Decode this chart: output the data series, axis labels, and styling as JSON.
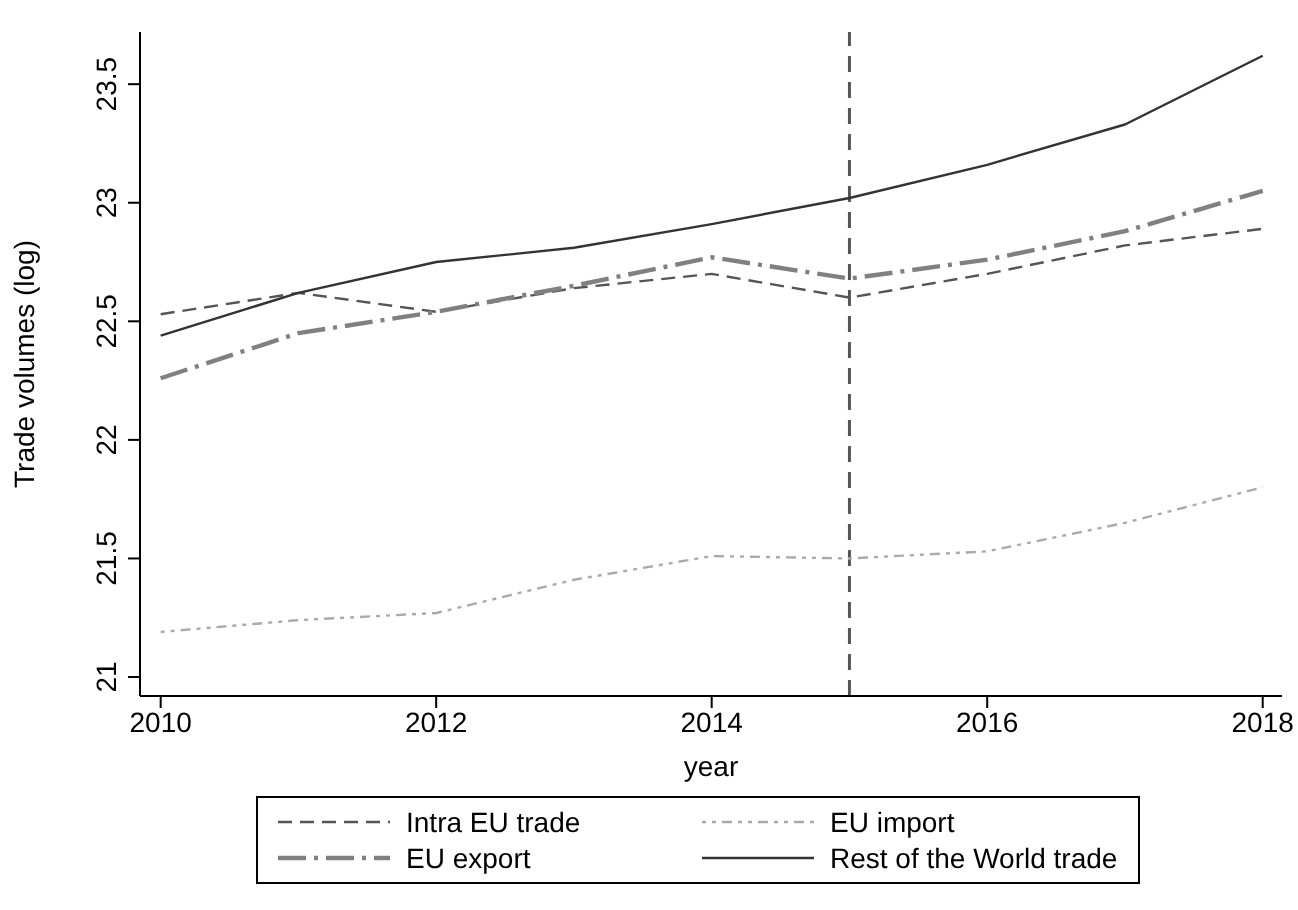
{
  "chart_data": {
    "type": "line",
    "xlabel": "year",
    "ylabel": "Trade volumes (log)",
    "x": [
      2010,
      2011,
      2012,
      2013,
      2014,
      2015,
      2016,
      2017,
      2018
    ],
    "xlim": [
      2009.85,
      2018.14
    ],
    "xticks": [
      2010,
      2012,
      2014,
      2016,
      2018
    ],
    "ylim": [
      20.92,
      23.72
    ],
    "yticks": [
      21,
      21.5,
      22,
      22.5,
      23,
      23.5
    ],
    "grid": false,
    "legend": "bottom",
    "marker": "none",
    "ref_lines": [
      {
        "axis": "x",
        "value": 2015,
        "color": "#555555",
        "line_style": "dashed"
      }
    ],
    "series": [
      {
        "name": "Intra EU trade",
        "color": "#555555",
        "line_style": "dashed",
        "values": [
          22.53,
          22.62,
          22.54,
          22.64,
          22.7,
          22.6,
          22.7,
          22.82,
          22.89
        ]
      },
      {
        "name": "EU import",
        "color": "#aaaaaa",
        "line_style": "dotted",
        "values": [
          21.19,
          21.24,
          21.27,
          21.41,
          21.51,
          21.5,
          21.53,
          21.65,
          21.8
        ]
      },
      {
        "name": "EU export",
        "color": "#808080",
        "line_style": "dashed",
        "values": [
          22.26,
          22.45,
          22.54,
          22.65,
          22.77,
          22.68,
          22.76,
          22.88,
          23.05
        ]
      },
      {
        "name": "Rest of the World trade",
        "color": "#333333",
        "line_style": "solid",
        "values": [
          22.44,
          22.62,
          22.75,
          22.81,
          22.91,
          23.02,
          23.16,
          23.33,
          23.62
        ]
      }
    ]
  }
}
